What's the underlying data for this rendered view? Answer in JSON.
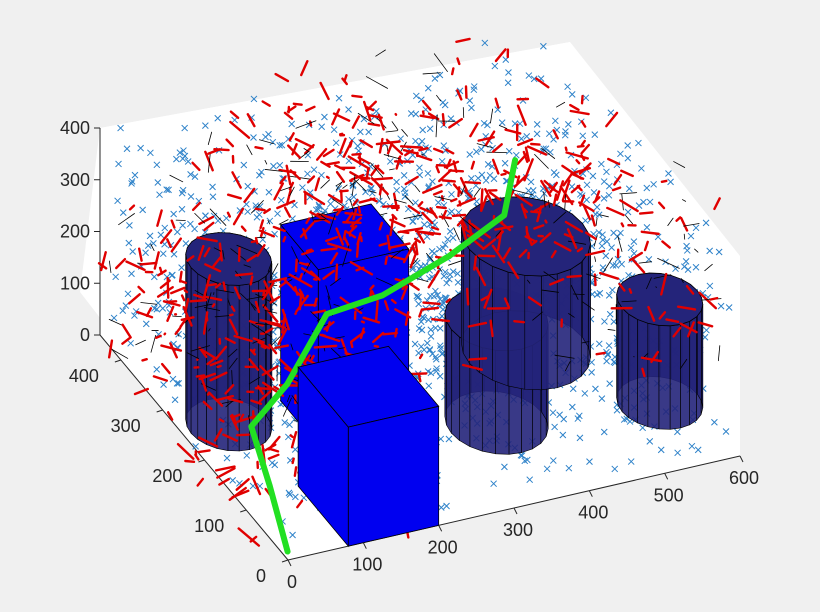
{
  "chart_data": {
    "type": "scatter",
    "title": "",
    "xlabel": "",
    "ylabel": "",
    "zlabel": "",
    "xlim": [
      0,
      600
    ],
    "ylim": [
      0,
      450
    ],
    "zlim": [
      0,
      400
    ],
    "x_ticks": [
      "0",
      "100",
      "200",
      "300",
      "400",
      "500",
      "600"
    ],
    "y_ticks": [
      "0",
      "100",
      "200",
      "300",
      "400"
    ],
    "z_ticks": [
      "0",
      "100",
      "200",
      "300",
      "400"
    ],
    "grid": false,
    "legend": "none",
    "colors": {
      "background": "#f0f0f0",
      "axes_face": "#ffffff",
      "samples": "#2e82c9",
      "tree_branches": "#e00000",
      "tree_edges": "#000000",
      "path": "#22e022",
      "box_obstacle": "#0000f0",
      "cylinder_obstacle": "#24247a"
    },
    "series": [
      {
        "type": "scatter",
        "marker": "x",
        "sample_count": 1500
      },
      {
        "type": "tree",
        "branch_segments": 900
      },
      {
        "type": "line",
        "path": [
          [
            5,
            10,
            5
          ],
          [
            20,
            80,
            60
          ],
          [
            40,
            160,
            90
          ],
          [
            110,
            200,
            110
          ],
          [
            190,
            250,
            170
          ],
          [
            270,
            260,
            170
          ],
          [
            380,
            300,
            170
          ],
          [
            470,
            330,
            190
          ],
          [
            490,
            340,
            280
          ]
        ]
      }
    ],
    "obstacles": [
      {
        "type": "box",
        "x": [
          80,
          200
        ],
        "y": [
          0,
          120
        ],
        "z": [
          0,
          230
        ]
      },
      {
        "type": "box",
        "x": [
          140,
          260
        ],
        "y": [
          180,
          270
        ],
        "z": [
          0,
          340
        ]
      },
      {
        "type": "cylinder",
        "center": [
          60,
          250
        ],
        "radius": 50,
        "z": [
          0,
          320
        ]
      },
      {
        "type": "cylinder",
        "center": [
          360,
          150
        ],
        "radius": 60,
        "z": [
          0,
          200
        ]
      },
      {
        "type": "cylinder",
        "center": [
          460,
          260
        ],
        "radius": 75,
        "z": [
          0,
          220
        ]
      },
      {
        "type": "cylinder",
        "center": [
          560,
          120
        ],
        "radius": 50,
        "z": [
          0,
          200
        ]
      }
    ]
  }
}
